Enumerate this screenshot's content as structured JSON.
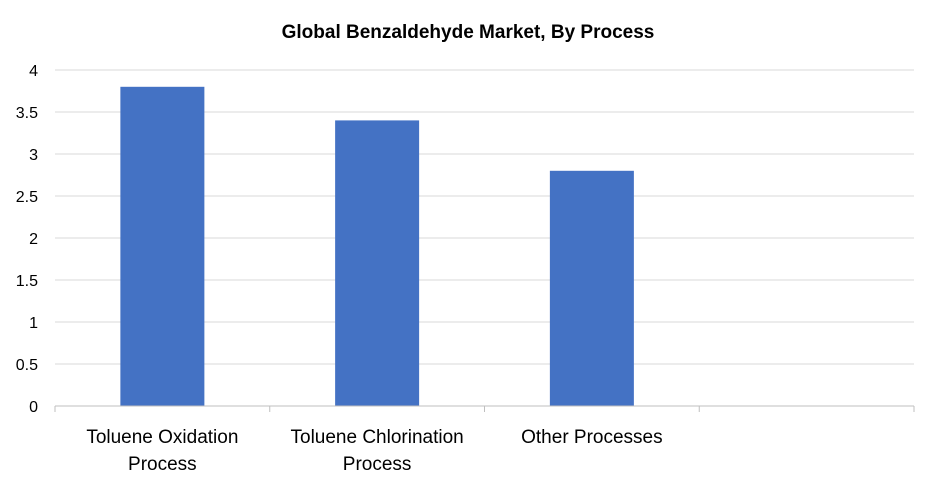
{
  "chart_data": {
    "type": "bar",
    "title": "Global Benzaldehyde Market, By Process",
    "categories": [
      [
        "Toluene Oxidation",
        "Process"
      ],
      [
        "Toluene Chlorination",
        "Process"
      ],
      [
        "Other Processes"
      ],
      []
    ],
    "series": [
      {
        "values": [
          3.8,
          3.4,
          2.8,
          null
        ]
      }
    ],
    "xlabel": "",
    "ylabel": "",
    "ylim": [
      0,
      4
    ],
    "yticks": [
      "0",
      "0.5",
      "1",
      "1.5",
      "2",
      "2.5",
      "3",
      "3.5",
      "4"
    ],
    "grid": true,
    "legend": "none",
    "colors": {
      "bar": "#4472C4",
      "grid": "#D9D9D9",
      "axis": "#BFBFBF",
      "text": "#000000"
    }
  }
}
